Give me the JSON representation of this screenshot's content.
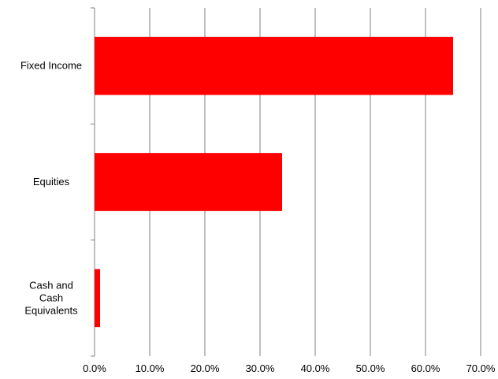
{
  "chart_data": {
    "type": "bar",
    "orientation": "horizontal",
    "categories": [
      "Fixed Income",
      "Equities",
      "Cash and Cash Equivalents"
    ],
    "category_label_lines": [
      [
        "Fixed Income"
      ],
      [
        "Equities"
      ],
      [
        "Cash and",
        "Cash",
        "Equivalents"
      ]
    ],
    "values": [
      65.0,
      34.0,
      1.0
    ],
    "xlim": [
      0,
      70
    ],
    "x_ticks": [
      0,
      10,
      20,
      30,
      40,
      50,
      60,
      70
    ],
    "x_tick_labels": [
      "0.0%",
      "10.0%",
      "20.0%",
      "30.0%",
      "40.0%",
      "50.0%",
      "60.0%",
      "70.0%"
    ],
    "grid": "vertical",
    "legend": "none",
    "title": "",
    "xlabel": "",
    "ylabel": "",
    "bar_color": "#ff0000",
    "grid_color": "#808080"
  }
}
